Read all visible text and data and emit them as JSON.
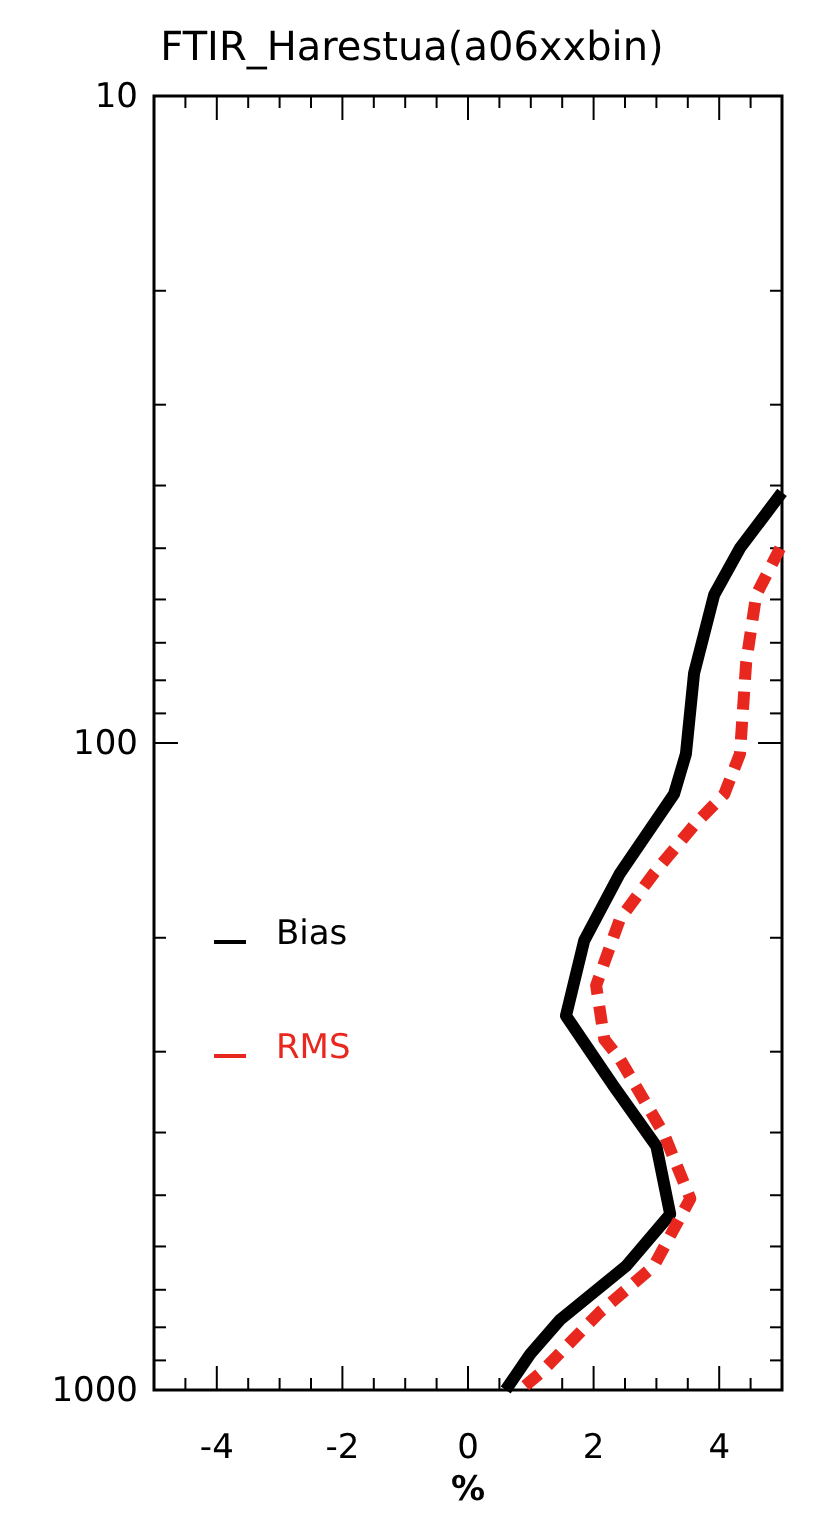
{
  "chart_data": {
    "type": "line",
    "title": "FTIR_Harestua(a06xxbin)",
    "xlabel": "%",
    "xlim": [
      -5,
      5
    ],
    "xticks": [
      {
        "value": -4.5,
        "label": null
      },
      {
        "value": -4,
        "label": "-4"
      },
      {
        "value": -3.5,
        "label": null
      },
      {
        "value": -3,
        "label": null
      },
      {
        "value": -2.5,
        "label": null
      },
      {
        "value": -2,
        "label": "-2"
      },
      {
        "value": -1.5,
        "label": null
      },
      {
        "value": -1,
        "label": null
      },
      {
        "value": -0.5,
        "label": null
      },
      0,
      {
        "value": 0.5,
        "label": null
      },
      {
        "value": 1,
        "label": null
      },
      {
        "value": 1.5,
        "label": null
      },
      2,
      {
        "value": 2.5,
        "label": null
      },
      {
        "value": 3,
        "label": null
      },
      {
        "value": 3.5,
        "label": null
      },
      4,
      {
        "value": 4.5,
        "label": null
      }
    ],
    "ylim": [
      1000,
      10
    ],
    "log": "y",
    "yticks": [
      10,
      {
        "value": 20,
        "label": null
      },
      {
        "value": 30,
        "label": null
      },
      {
        "value": 40,
        "label": null
      },
      {
        "value": 50,
        "label": null
      },
      {
        "value": 60,
        "label": null
      },
      {
        "value": 70,
        "label": null
      },
      {
        "value": 80,
        "label": null
      },
      {
        "value": 90,
        "label": null
      },
      100,
      {
        "value": 200,
        "label": null
      },
      {
        "value": 300,
        "label": null
      },
      {
        "value": 400,
        "label": null
      },
      {
        "value": 500,
        "label": null
      },
      {
        "value": 600,
        "label": null
      },
      {
        "value": 700,
        "label": null
      },
      {
        "value": 800,
        "label": null
      },
      {
        "value": 900,
        "label": null
      },
      1000
    ],
    "legend": "left",
    "grid": false,
    "series": [
      {
        "name": "Bias",
        "color": "#000000",
        "line_style": "solid",
        "x": [
          5,
          4.33,
          3.92,
          3.6,
          3.47,
          3.28,
          2.42,
          1.85,
          1.56,
          2.32,
          3.0,
          3.22,
          2.52,
          1.46,
          0.99,
          0.6
        ],
        "values": [
          41,
          50,
          59,
          78,
          104,
          120,
          159,
          202,
          264,
          339,
          420,
          535,
          643,
          780,
          880,
          1000
        ]
      },
      {
        "name": "RMS",
        "color": "#e8281e",
        "line_style": "dashed",
        "x": [
          4.97,
          4.59,
          4.43,
          4.33,
          4.08,
          3.6,
          2.96,
          2.42,
          2.04,
          2.17,
          2.42,
          3.12,
          3.54,
          2.96,
          2.1,
          1.15,
          0.83
        ],
        "values": [
          50,
          59,
          75,
          104,
          120,
          134,
          159,
          187,
          237,
          287,
          308,
          402,
          506,
          643,
          758,
          942,
          1000
        ]
      }
    ]
  }
}
